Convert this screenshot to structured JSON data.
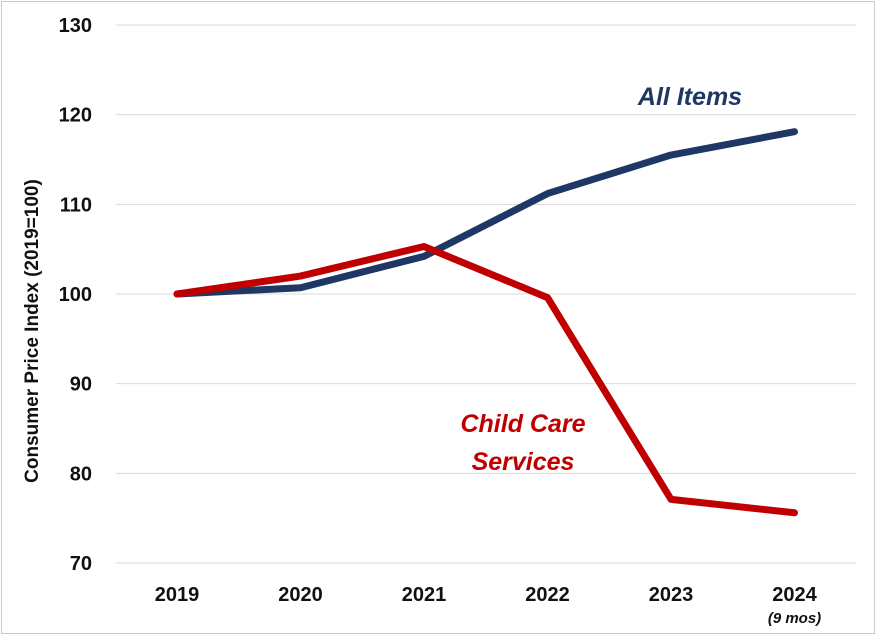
{
  "chart_data": {
    "type": "line",
    "title": "",
    "xlabel": "",
    "ylabel": "Consumer Price Index (2019=100)",
    "categories": [
      "2019",
      "2020",
      "2021",
      "2022",
      "2023",
      "2024"
    ],
    "category_notes": [
      "",
      "",
      "",
      "",
      "",
      "(9 mos)"
    ],
    "ylim": [
      70,
      130
    ],
    "yticks": [
      70,
      80,
      90,
      100,
      110,
      120,
      130
    ],
    "grid": true,
    "series": [
      {
        "name": "All Items",
        "color": "#1f3764",
        "values": [
          100.0,
          100.7,
          104.2,
          111.2,
          115.5,
          118.1
        ]
      },
      {
        "name": "Child Care Services",
        "name_lines": [
          "Child Care",
          "Services"
        ],
        "color": "#c00000",
        "values": [
          100.0,
          102.0,
          105.3,
          99.6,
          77.1,
          75.6
        ]
      }
    ]
  }
}
